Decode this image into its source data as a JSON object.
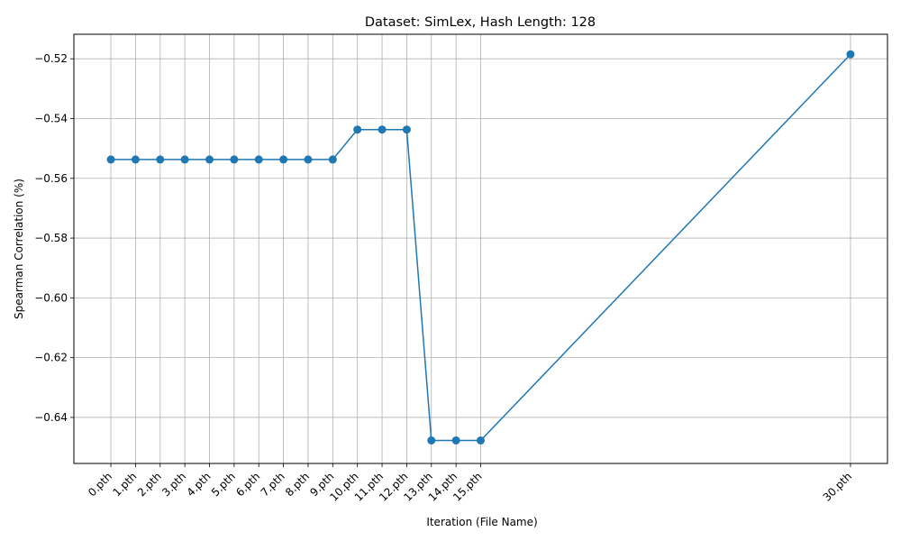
{
  "chart_data": {
    "type": "line",
    "title": "Dataset: SimLex, Hash Length: 128",
    "xlabel": "Iteration (File Name)",
    "ylabel": "Spearman Correlation (%)",
    "x_numeric": [
      0,
      1,
      2,
      3,
      4,
      5,
      6,
      7,
      8,
      9,
      10,
      11,
      12,
      13,
      14,
      15,
      30
    ],
    "categories": [
      "0.pth",
      "1.pth",
      "2.pth",
      "3.pth",
      "4.pth",
      "5.pth",
      "6.pth",
      "7.pth",
      "8.pth",
      "9.pth",
      "10.pth",
      "11.pth",
      "12.pth",
      "13.pth",
      "14.pth",
      "15.pth",
      "30.pth"
    ],
    "values": [
      -0.5537,
      -0.5537,
      -0.5537,
      -0.5537,
      -0.5537,
      -0.5537,
      -0.5537,
      -0.5537,
      -0.5537,
      -0.5537,
      -0.5437,
      -0.5437,
      -0.5437,
      -0.6477,
      -0.6477,
      -0.6477,
      -0.5185
    ],
    "xlim": [
      -1.5,
      31.5
    ],
    "ylim": [
      -0.6554,
      -0.5118
    ],
    "yticks": [
      -0.64,
      -0.62,
      -0.6,
      -0.58,
      -0.56,
      -0.54,
      -0.52
    ],
    "ytick_labels": [
      "−0.64",
      "−0.62",
      "−0.60",
      "−0.58",
      "−0.56",
      "−0.54",
      "−0.52"
    ],
    "grid": true,
    "line_color": "#1f77b4"
  }
}
